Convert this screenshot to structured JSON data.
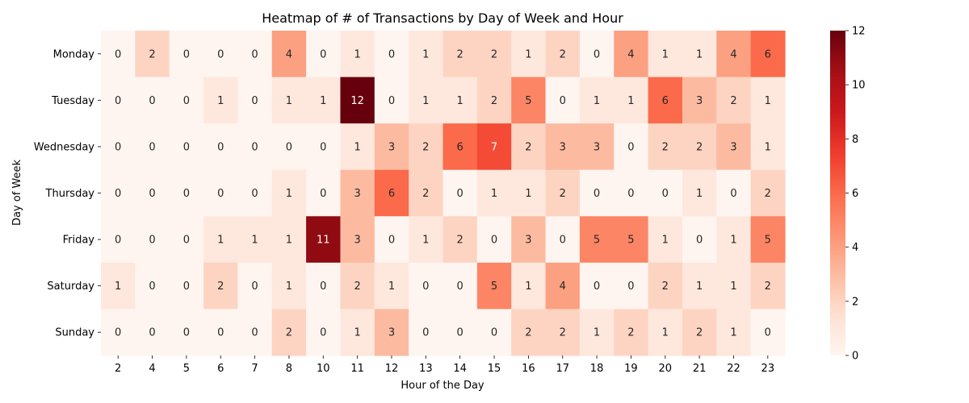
{
  "chart_data": {
    "type": "heatmap",
    "title": "Heatmap of # of Transactions by Day of Week and Hour",
    "xlabel": "Hour of the Day",
    "ylabel": "Day of Week",
    "x_categories": [
      "2",
      "4",
      "5",
      "6",
      "7",
      "8",
      "10",
      "11",
      "12",
      "13",
      "14",
      "15",
      "16",
      "17",
      "18",
      "19",
      "20",
      "21",
      "22",
      "23"
    ],
    "y_categories": [
      "Monday",
      "Tuesday",
      "Wednesday",
      "Thursday",
      "Friday",
      "Saturday",
      "Sunday"
    ],
    "values": [
      [
        0,
        2,
        0,
        0,
        0,
        4,
        0,
        1,
        0,
        1,
        2,
        2,
        1,
        2,
        0,
        4,
        1,
        1,
        4,
        6
      ],
      [
        0,
        0,
        0,
        1,
        0,
        1,
        1,
        12,
        0,
        1,
        1,
        2,
        5,
        0,
        1,
        1,
        6,
        3,
        2,
        1
      ],
      [
        0,
        0,
        0,
        0,
        0,
        0,
        0,
        1,
        3,
        2,
        6,
        7,
        2,
        3,
        3,
        0,
        2,
        2,
        3,
        1
      ],
      [
        0,
        0,
        0,
        0,
        0,
        1,
        0,
        3,
        6,
        2,
        0,
        1,
        1,
        2,
        0,
        0,
        0,
        1,
        0,
        2
      ],
      [
        0,
        0,
        0,
        1,
        1,
        1,
        11,
        3,
        0,
        1,
        2,
        0,
        3,
        0,
        5,
        5,
        1,
        0,
        1,
        5
      ],
      [
        1,
        0,
        0,
        2,
        0,
        1,
        0,
        2,
        1,
        0,
        0,
        5,
        1,
        4,
        0,
        0,
        2,
        1,
        1,
        2
      ],
      [
        0,
        0,
        0,
        0,
        0,
        2,
        0,
        1,
        3,
        0,
        0,
        0,
        2,
        2,
        1,
        2,
        1,
        2,
        1,
        0
      ]
    ],
    "colorbar": {
      "min": 0,
      "max": 12,
      "ticks": [
        0,
        2,
        4,
        6,
        8,
        10,
        12
      ]
    },
    "colormap": "Reds",
    "annotations": true,
    "grid": false
  }
}
